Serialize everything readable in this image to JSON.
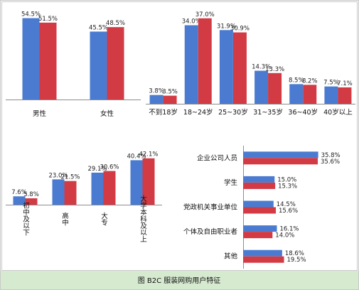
{
  "colors": {
    "blue": "#4a7bd0",
    "red": "#d23a44"
  },
  "caption": "图   B2C 服装网购用户特征",
  "chart_data": [
    {
      "id": "gender",
      "type": "bar",
      "categories": [
        "男性",
        "女性"
      ],
      "series": [
        {
          "values": [
            54.5,
            45.5
          ],
          "labels": [
            "54.5%",
            "45.5%"
          ]
        },
        {
          "values": [
            51.5,
            48.5
          ],
          "labels": [
            "51.5%",
            "48.5%"
          ]
        }
      ]
    },
    {
      "id": "age",
      "type": "bar",
      "categories": [
        "不到18岁",
        "18~24岁",
        "25~30岁",
        "31~35岁",
        "36~40岁",
        "40岁以上"
      ],
      "series": [
        {
          "values": [
            3.8,
            34.0,
            31.9,
            14.3,
            8.5,
            7.5
          ],
          "labels": [
            "3.8%",
            "34.0%",
            "31.9%",
            "14.3%",
            "8.5%",
            "7.5%"
          ]
        },
        {
          "values": [
            3.5,
            37.0,
            30.9,
            13.3,
            8.2,
            7.1
          ],
          "labels": [
            "3.5%",
            "37.0%",
            "30.9%",
            "13.3%",
            "8.2%",
            "7.1%"
          ]
        }
      ]
    },
    {
      "id": "education",
      "type": "bar",
      "categories": [
        "初中及以下",
        "高中",
        "大专",
        "大学本科及以上"
      ],
      "series": [
        {
          "values": [
            7.6,
            23.0,
            29.1,
            40.4
          ],
          "labels": [
            "7.6%",
            "23.0%",
            "29.1%",
            "40.4%"
          ]
        },
        {
          "values": [
            5.8,
            21.5,
            30.6,
            42.1
          ],
          "labels": [
            "5.8%",
            "21.5%",
            "30.6%",
            "42.1%"
          ]
        }
      ]
    },
    {
      "id": "occupation",
      "type": "bar",
      "orientation": "horizontal",
      "categories": [
        "企业公司人员",
        "学生",
        "党政机关事业单位",
        "个体及自由职业者",
        "其他"
      ],
      "series": [
        {
          "values": [
            35.8,
            15.0,
            14.5,
            16.1,
            18.6
          ],
          "labels": [
            "35.8%",
            "15.0%",
            "14.5%",
            "16.1%",
            "18.6%"
          ]
        },
        {
          "values": [
            35.6,
            15.3,
            15.6,
            14.0,
            19.5
          ],
          "labels": [
            "35.6%",
            "15.3%",
            "15.6%",
            "14.0%",
            "19.5%"
          ]
        }
      ]
    }
  ]
}
